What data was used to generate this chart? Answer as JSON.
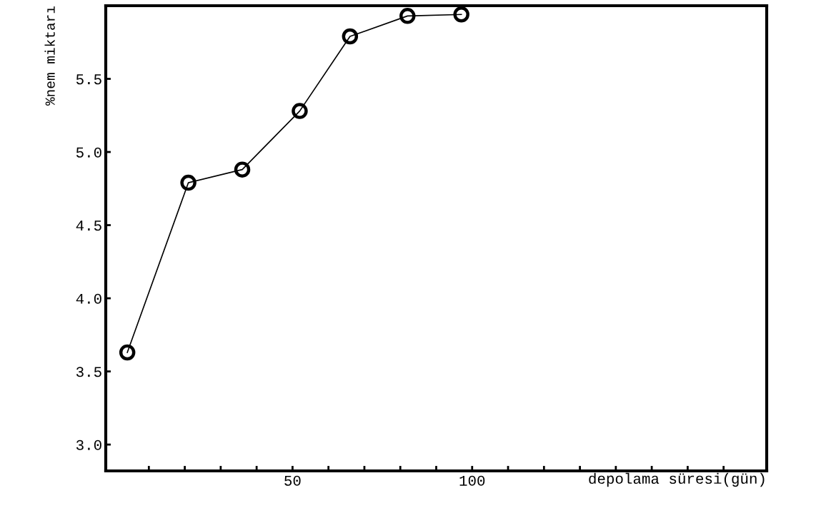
{
  "chart_data": {
    "type": "line",
    "xlabel": "depolama süresi(gün)",
    "ylabel": "%nem miktarı",
    "x": [
      4,
      21,
      36,
      52,
      66,
      82,
      97
    ],
    "series": [
      {
        "color": "#000000",
        "values": [
          3.63,
          4.79,
          4.88,
          5.28,
          5.79,
          5.93,
          5.94
        ]
      }
    ],
    "marker": "circle",
    "line_style": "solid",
    "grid": false,
    "legend": false,
    "xlim": [
      -2,
      182
    ],
    "ylim": [
      2.82,
      6.0
    ],
    "xticks": [
      {
        "value": 10,
        "label": null
      },
      {
        "value": 20,
        "label": null
      },
      {
        "value": 30,
        "label": null
      },
      {
        "value": 40,
        "label": null
      },
      50,
      {
        "value": 60,
        "label": null
      },
      {
        "value": 70,
        "label": null
      },
      {
        "value": 80,
        "label": null
      },
      {
        "value": 90,
        "label": null
      },
      100,
      {
        "value": 110,
        "label": null
      },
      {
        "value": 120,
        "label": null
      },
      {
        "value": 130,
        "label": null
      },
      {
        "value": 140,
        "label": null
      },
      {
        "value": 150,
        "label": null
      },
      {
        "value": 160,
        "label": null
      },
      {
        "value": 170,
        "label": null
      }
    ],
    "yticks": [
      {
        "value": 3.0,
        "label": "3.0"
      },
      {
        "value": 3.5,
        "label": "3.5"
      },
      {
        "value": 4.0,
        "label": "4.0"
      },
      {
        "value": 4.5,
        "label": "4.5"
      },
      {
        "value": 5.0,
        "label": "5.0"
      },
      {
        "value": 5.5,
        "label": "5.5"
      }
    ]
  }
}
